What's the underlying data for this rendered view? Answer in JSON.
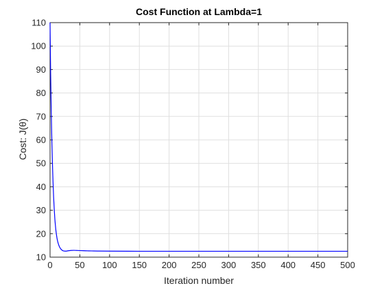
{
  "chart_data": {
    "type": "line",
    "title": "Cost Function at Lambda=1",
    "xlabel": "Iteration number",
    "ylabel": "Cost: J(θ)",
    "xlim": [
      0,
      500
    ],
    "ylim": [
      10,
      110
    ],
    "xticks": [
      0,
      50,
      100,
      150,
      200,
      250,
      300,
      350,
      400,
      450,
      500
    ],
    "yticks": [
      10,
      20,
      30,
      40,
      50,
      60,
      70,
      80,
      90,
      100,
      110
    ],
    "grid": true,
    "legend": "none",
    "line_color": "#0000ff",
    "series": [
      {
        "x": [
          0,
          1,
          2,
          3,
          4,
          5,
          6,
          7,
          8,
          9,
          10,
          12,
          14,
          16,
          18,
          20,
          22,
          24,
          26,
          28,
          30,
          35,
          40,
          45,
          50,
          60,
          70,
          80,
          100,
          150,
          200,
          250,
          300,
          350,
          400,
          450,
          500
        ],
        "values": [
          110,
          88,
          72,
          60,
          50,
          42,
          35.5,
          30.5,
          26.5,
          23.5,
          21,
          17.6,
          15.6,
          14.3,
          13.5,
          13.0,
          12.7,
          12.6,
          12.55,
          12.6,
          12.7,
          12.85,
          12.9,
          12.85,
          12.8,
          12.7,
          12.65,
          12.6,
          12.55,
          12.5,
          12.5,
          12.5,
          12.5,
          12.5,
          12.5,
          12.5,
          12.5
        ]
      }
    ]
  }
}
